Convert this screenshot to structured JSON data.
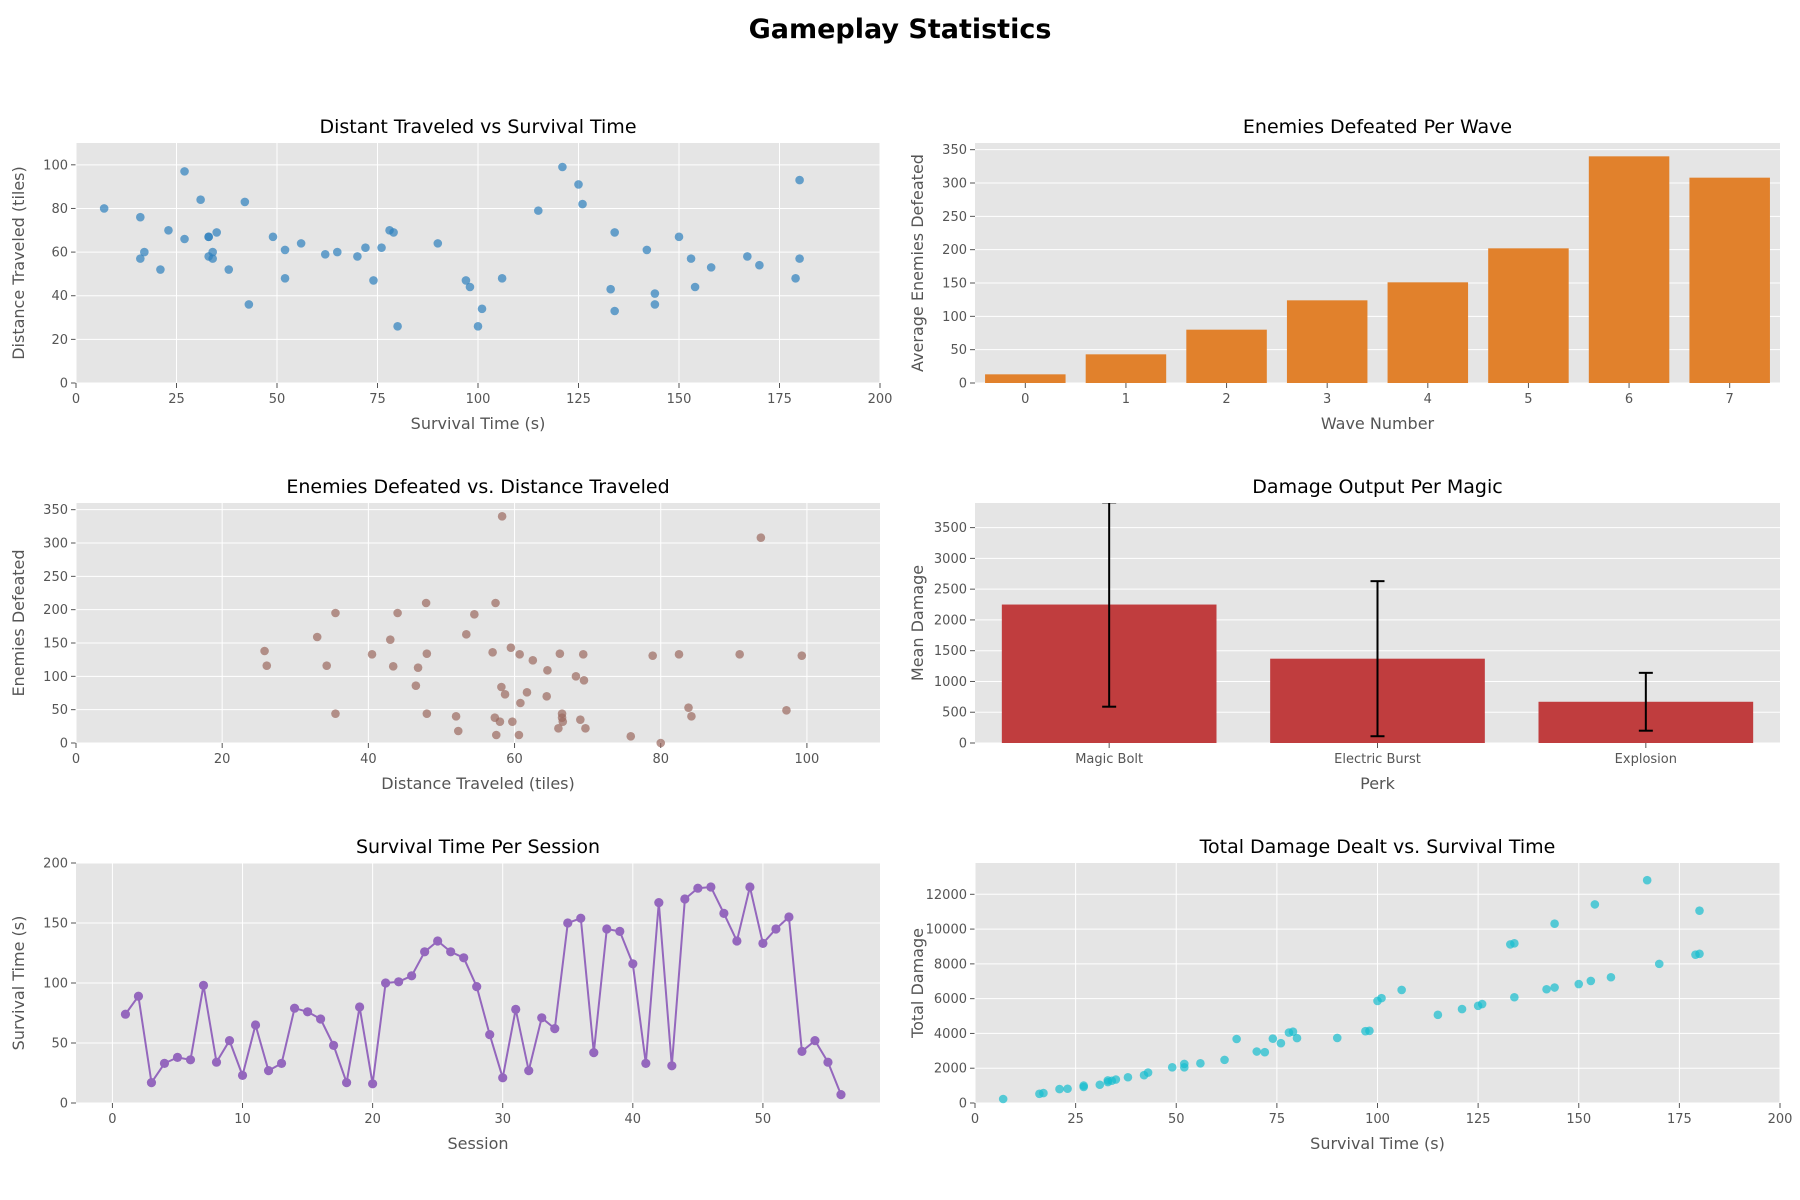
{
  "figure": {
    "title": "Gameplay Statistics"
  },
  "colors": {
    "scatter1": "#2d80bd",
    "bar1": "#e1812c",
    "scatter2": "#9b6a5f",
    "bar2": "#c03d3e",
    "line": "#9467bd",
    "scatter3": "#17becf",
    "axes_bg": "#e5e5e5",
    "grid": "#ffffff"
  },
  "chart_data": [
    {
      "id": "c1",
      "type": "scatter",
      "title": "Distant Traveled vs Survival Time",
      "xlabel": "Survival Time (s)",
      "ylabel": "Distance Traveled (tiles)",
      "xlim": [
        0,
        200
      ],
      "ylim": [
        0,
        110
      ],
      "xticks": [
        0,
        25,
        50,
        75,
        100,
        125,
        150,
        175,
        200
      ],
      "yticks": [
        0,
        20,
        40,
        60,
        80,
        100
      ],
      "grid": true,
      "points": [
        [
          7,
          80
        ],
        [
          16,
          76
        ],
        [
          16,
          57
        ],
        [
          17,
          60
        ],
        [
          21,
          52
        ],
        [
          23,
          70
        ],
        [
          27,
          97
        ],
        [
          27,
          66
        ],
        [
          31,
          84
        ],
        [
          33,
          67
        ],
        [
          33,
          58
        ],
        [
          33,
          67
        ],
        [
          34,
          57
        ],
        [
          34,
          60
        ],
        [
          35,
          69
        ],
        [
          38,
          52
        ],
        [
          42,
          83
        ],
        [
          43,
          36
        ],
        [
          49,
          67
        ],
        [
          52,
          61
        ],
        [
          52,
          48
        ],
        [
          56,
          64
        ],
        [
          62,
          59
        ],
        [
          65,
          60
        ],
        [
          70,
          58
        ],
        [
          72,
          62
        ],
        [
          74,
          47
        ],
        [
          76,
          62
        ],
        [
          78,
          70
        ],
        [
          79,
          69
        ],
        [
          80,
          26
        ],
        [
          90,
          64
        ],
        [
          97,
          47
        ],
        [
          98,
          44
        ],
        [
          100,
          26
        ],
        [
          101,
          34
        ],
        [
          106,
          48
        ],
        [
          115,
          79
        ],
        [
          121,
          99
        ],
        [
          125,
          91
        ],
        [
          126,
          82
        ],
        [
          133,
          43
        ],
        [
          134,
          69
        ],
        [
          134,
          33
        ],
        [
          142,
          61
        ],
        [
          144,
          36
        ],
        [
          144,
          41
        ],
        [
          150,
          67
        ],
        [
          153,
          57
        ],
        [
          154,
          44
        ],
        [
          158,
          53
        ],
        [
          167,
          58
        ],
        [
          170,
          54
        ],
        [
          179,
          48
        ],
        [
          180,
          93
        ],
        [
          180,
          57
        ]
      ]
    },
    {
      "id": "c2",
      "type": "bar",
      "title": "Enemies Defeated Per Wave",
      "xlabel": "Wave Number",
      "ylabel": "Average Enemies Defeated",
      "categories": [
        "0",
        "1",
        "2",
        "3",
        "4",
        "5",
        "6",
        "7"
      ],
      "values": [
        13,
        43,
        80,
        124,
        151,
        202,
        340,
        308
      ],
      "ylim": [
        0,
        360
      ],
      "yticks": [
        0,
        50,
        100,
        150,
        200,
        250,
        300,
        350
      ],
      "grid": true
    },
    {
      "id": "c3",
      "type": "scatter",
      "title": "Enemies Defeated vs. Distance Traveled",
      "xlabel": "Distance Traveled (tiles)",
      "ylabel": "Enemies Defeated",
      "xlim": [
        0,
        110
      ],
      "ylim": [
        0,
        360
      ],
      "xticks": [
        0,
        20,
        40,
        60,
        80,
        100
      ],
      "yticks": [
        0,
        50,
        100,
        150,
        200,
        250,
        300,
        350
      ],
      "grid": true,
      "points": [
        [
          25.8,
          138
        ],
        [
          26.1,
          116
        ],
        [
          33,
          159
        ],
        [
          34.3,
          116
        ],
        [
          35.5,
          195
        ],
        [
          35.5,
          44
        ],
        [
          40.5,
          133
        ],
        [
          43,
          155
        ],
        [
          43.4,
          115
        ],
        [
          44,
          195
        ],
        [
          46.5,
          86
        ],
        [
          46.8,
          113
        ],
        [
          47.9,
          210
        ],
        [
          48,
          134
        ],
        [
          48,
          44
        ],
        [
          52,
          40
        ],
        [
          52.3,
          18
        ],
        [
          53.4,
          163
        ],
        [
          54.5,
          193
        ],
        [
          57,
          136
        ],
        [
          57.3,
          38
        ],
        [
          57.4,
          210
        ],
        [
          57.5,
          12
        ],
        [
          58,
          32
        ],
        [
          58.2,
          84
        ],
        [
          58.3,
          340
        ],
        [
          58.7,
          73
        ],
        [
          59.5,
          143
        ],
        [
          59.7,
          32
        ],
        [
          60.6,
          12
        ],
        [
          60.7,
          133
        ],
        [
          60.8,
          60
        ],
        [
          61.7,
          76
        ],
        [
          62.5,
          124
        ],
        [
          64.4,
          70
        ],
        [
          64.5,
          109
        ],
        [
          66,
          22
        ],
        [
          66.2,
          134
        ],
        [
          66.5,
          44
        ],
        [
          66.5,
          38
        ],
        [
          66.6,
          32
        ],
        [
          68.4,
          100
        ],
        [
          69,
          35
        ],
        [
          69.4,
          133
        ],
        [
          69.5,
          94
        ],
        [
          69.7,
          22
        ],
        [
          75.9,
          10
        ],
        [
          78.9,
          131
        ],
        [
          80,
          0
        ],
        [
          82.5,
          133
        ],
        [
          83.8,
          53
        ],
        [
          84.2,
          40
        ],
        [
          90.8,
          133
        ],
        [
          93.7,
          308
        ],
        [
          97.2,
          49
        ],
        [
          99.3,
          131
        ]
      ]
    },
    {
      "id": "c4",
      "type": "bar",
      "title": "Damage Output Per Magic",
      "xlabel": "Perk",
      "ylabel": "Mean Damage",
      "categories": [
        "Magic Bolt",
        "Electric Burst",
        "Explosion"
      ],
      "values": [
        2250,
        1370,
        670
      ],
      "error_low": [
        590,
        110,
        200
      ],
      "error_high": [
        3910,
        2630,
        1140
      ],
      "ylim": [
        0,
        3900
      ],
      "yticks": [
        0,
        500,
        1000,
        1500,
        2000,
        2500,
        3000,
        3500
      ],
      "grid": true
    },
    {
      "id": "c5",
      "type": "line",
      "title": "Survival Time Per Session",
      "xlabel": "Session",
      "ylabel": "Survival Time (s)",
      "xlim": [
        -2.8,
        59
      ],
      "ylim": [
        0,
        200
      ],
      "xticks": [
        0,
        10,
        20,
        30,
        40,
        50
      ],
      "yticks": [
        0,
        50,
        100,
        150,
        200
      ],
      "grid": true,
      "x": [
        1,
        2,
        3,
        4,
        5,
        6,
        7,
        8,
        9,
        10,
        11,
        12,
        13,
        14,
        15,
        16,
        17,
        18,
        19,
        20,
        21,
        22,
        23,
        24,
        25,
        26,
        27,
        28,
        29,
        30,
        31,
        32,
        33,
        34,
        35,
        36,
        37,
        38,
        39,
        40,
        41,
        42,
        43,
        44,
        45,
        46,
        47,
        48,
        49,
        50,
        51,
        52,
        53,
        54,
        55,
        56
      ],
      "y": [
        74,
        89,
        17,
        33,
        38,
        36,
        98,
        34,
        52,
        23,
        65,
        27,
        33,
        79,
        76,
        70,
        48,
        17,
        80,
        16,
        100,
        101,
        106,
        126,
        135,
        126,
        121,
        97,
        57,
        21,
        78,
        27,
        71,
        62,
        150,
        154,
        42,
        145,
        143,
        116,
        33,
        167,
        31,
        170,
        179,
        180,
        158,
        135,
        180,
        133,
        145,
        155,
        43,
        52,
        34,
        7
      ]
    },
    {
      "id": "c6",
      "type": "scatter",
      "title": "Total Damage Dealt vs. Survival Time",
      "xlabel": "Survival Time (s)",
      "ylabel": "Total Damage",
      "xlim": [
        0,
        200
      ],
      "ylim": [
        0,
        13800
      ],
      "xticks": [
        0,
        25,
        50,
        75,
        100,
        125,
        150,
        175,
        200
      ],
      "yticks": [
        0,
        2000,
        4000,
        6000,
        8000,
        10000,
        12000
      ],
      "grid": true,
      "points": [
        [
          7,
          230
        ],
        [
          16,
          530
        ],
        [
          17,
          570
        ],
        [
          21,
          800
        ],
        [
          23,
          820
        ],
        [
          27,
          920
        ],
        [
          27,
          1000
        ],
        [
          31,
          1050
        ],
        [
          33,
          1200
        ],
        [
          33,
          1300
        ],
        [
          34,
          1280
        ],
        [
          35,
          1350
        ],
        [
          38,
          1480
        ],
        [
          42,
          1600
        ],
        [
          43,
          1750
        ],
        [
          49,
          2050
        ],
        [
          52,
          2050
        ],
        [
          52,
          2250
        ],
        [
          56,
          2280
        ],
        [
          62,
          2480
        ],
        [
          65,
          3680
        ],
        [
          70,
          2960
        ],
        [
          72,
          2920
        ],
        [
          74,
          3700
        ],
        [
          76,
          3440
        ],
        [
          78,
          4050
        ],
        [
          79,
          4100
        ],
        [
          80,
          3730
        ],
        [
          90,
          3740
        ],
        [
          97,
          4130
        ],
        [
          98,
          4150
        ],
        [
          100,
          5870
        ],
        [
          101,
          6030
        ],
        [
          106,
          6500
        ],
        [
          115,
          5070
        ],
        [
          121,
          5400
        ],
        [
          125,
          5590
        ],
        [
          126,
          5690
        ],
        [
          133,
          9120
        ],
        [
          134,
          9180
        ],
        [
          134,
          6080
        ],
        [
          142,
          6540
        ],
        [
          144,
          6640
        ],
        [
          144,
          10310
        ],
        [
          150,
          6840
        ],
        [
          153,
          7020
        ],
        [
          154,
          11420
        ],
        [
          158,
          7230
        ],
        [
          167,
          12810
        ],
        [
          170,
          8000
        ],
        [
          179,
          8530
        ],
        [
          180,
          8580
        ],
        [
          180,
          11060
        ]
      ]
    }
  ]
}
